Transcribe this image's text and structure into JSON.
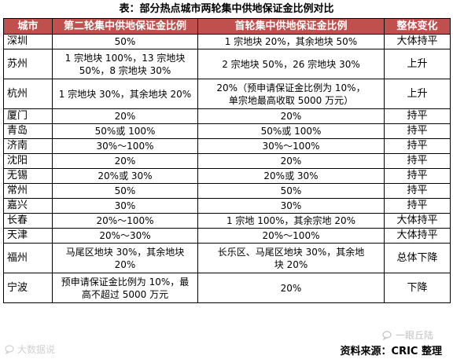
{
  "title": "表：部分热点城市两轮集中供地保证金比例对比",
  "table": {
    "headers": [
      "城市",
      "第二轮集中供地保证金比例",
      "首轮集中供地保证金比例",
      "整体变化"
    ],
    "rows": [
      {
        "city": "深圳",
        "second": [
          "50%"
        ],
        "first": [
          "1 宗地块 20%，其余地块 50%"
        ],
        "change": "大体持平",
        "h": 19
      },
      {
        "city": "苏州",
        "second": [
          "1 宗地块 100%，13 宗地块",
          "50%，8 宗地块 30%"
        ],
        "first": [
          "2 宗地块 50%，26 宗地块 30%"
        ],
        "change": "上升",
        "h": 38
      },
      {
        "city": "杭州",
        "second": [
          "1 宗地块 30%，其余地块 20%"
        ],
        "first": [
          "20%（预申请保证金比例为 10%，",
          "单宗地最高收取 5000 万元）"
        ],
        "change": "上升",
        "h": 38
      },
      {
        "city": "厦门",
        "second": [
          "20%"
        ],
        "first": [
          "20%"
        ],
        "change": "持平",
        "h": 19
      },
      {
        "city": "青岛",
        "second": [
          "50%或 100%"
        ],
        "first": [
          "50%或 100%"
        ],
        "change": "持平",
        "h": 19
      },
      {
        "city": "济南",
        "second": [
          "30%～100%"
        ],
        "first": [
          "30%～100%"
        ],
        "change": "持平",
        "h": 19
      },
      {
        "city": "沈阳",
        "second": [
          "20%"
        ],
        "first": [
          "20%"
        ],
        "change": "持平",
        "h": 19
      },
      {
        "city": "无锡",
        "second": [
          "20%或 30%"
        ],
        "first": [
          "20%或 30%"
        ],
        "change": "持平",
        "h": 19
      },
      {
        "city": "常州",
        "second": [
          "50%"
        ],
        "first": [
          "50%"
        ],
        "change": "持平",
        "h": 19
      },
      {
        "city": "嘉兴",
        "second": [
          "30%"
        ],
        "first": [
          "30%"
        ],
        "change": "持平",
        "h": 19
      },
      {
        "city": "长春",
        "second": [
          "20%～100%"
        ],
        "first": [
          "1 宗地 100%，其余宗地 20%"
        ],
        "change": "大体持平",
        "h": 19
      },
      {
        "city": "天津",
        "second": [
          "20%～30%"
        ],
        "first": [
          "20%～100%"
        ],
        "change": "大体持平",
        "h": 19
      },
      {
        "city": "福州",
        "second": [
          "马尾区地块 30%，其余地块",
          "20%"
        ],
        "first": [
          "长乐区、马尾区地块 30%，其余地",
          "块 20%"
        ],
        "change": "总体下降",
        "h": 38
      },
      {
        "city": "宁波",
        "second": [
          "预申请保证金比例为 10%，最",
          "高不超过 5000 万元"
        ],
        "first": [
          "20%"
        ],
        "change": "下降",
        "h": 38
      }
    ]
  },
  "source": "资料来源：CRIC 整理",
  "watermark_left": "大数据说",
  "watermark_right": "一眼丘陆"
}
